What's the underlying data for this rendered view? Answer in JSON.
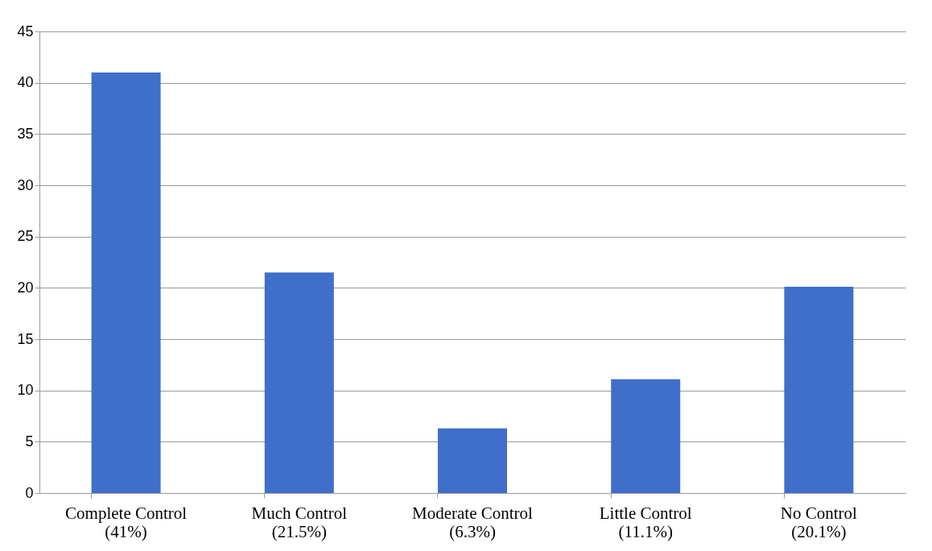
{
  "chart_data": {
    "type": "bar",
    "categories": [
      "Complete Control\n(41%)",
      "Much Control\n(21.5%)",
      "Moderate Control\n(6.3%)",
      "Little Control\n(11.1%)",
      "No Control\n(20.1%)"
    ],
    "values": [
      41,
      21.5,
      6.3,
      11.1,
      20.1
    ],
    "color": "#3f6fcb",
    "ylim": [
      0,
      45
    ],
    "yticks": [
      0,
      5,
      10,
      15,
      20,
      25,
      30,
      35,
      40,
      45
    ],
    "grid": "y"
  }
}
